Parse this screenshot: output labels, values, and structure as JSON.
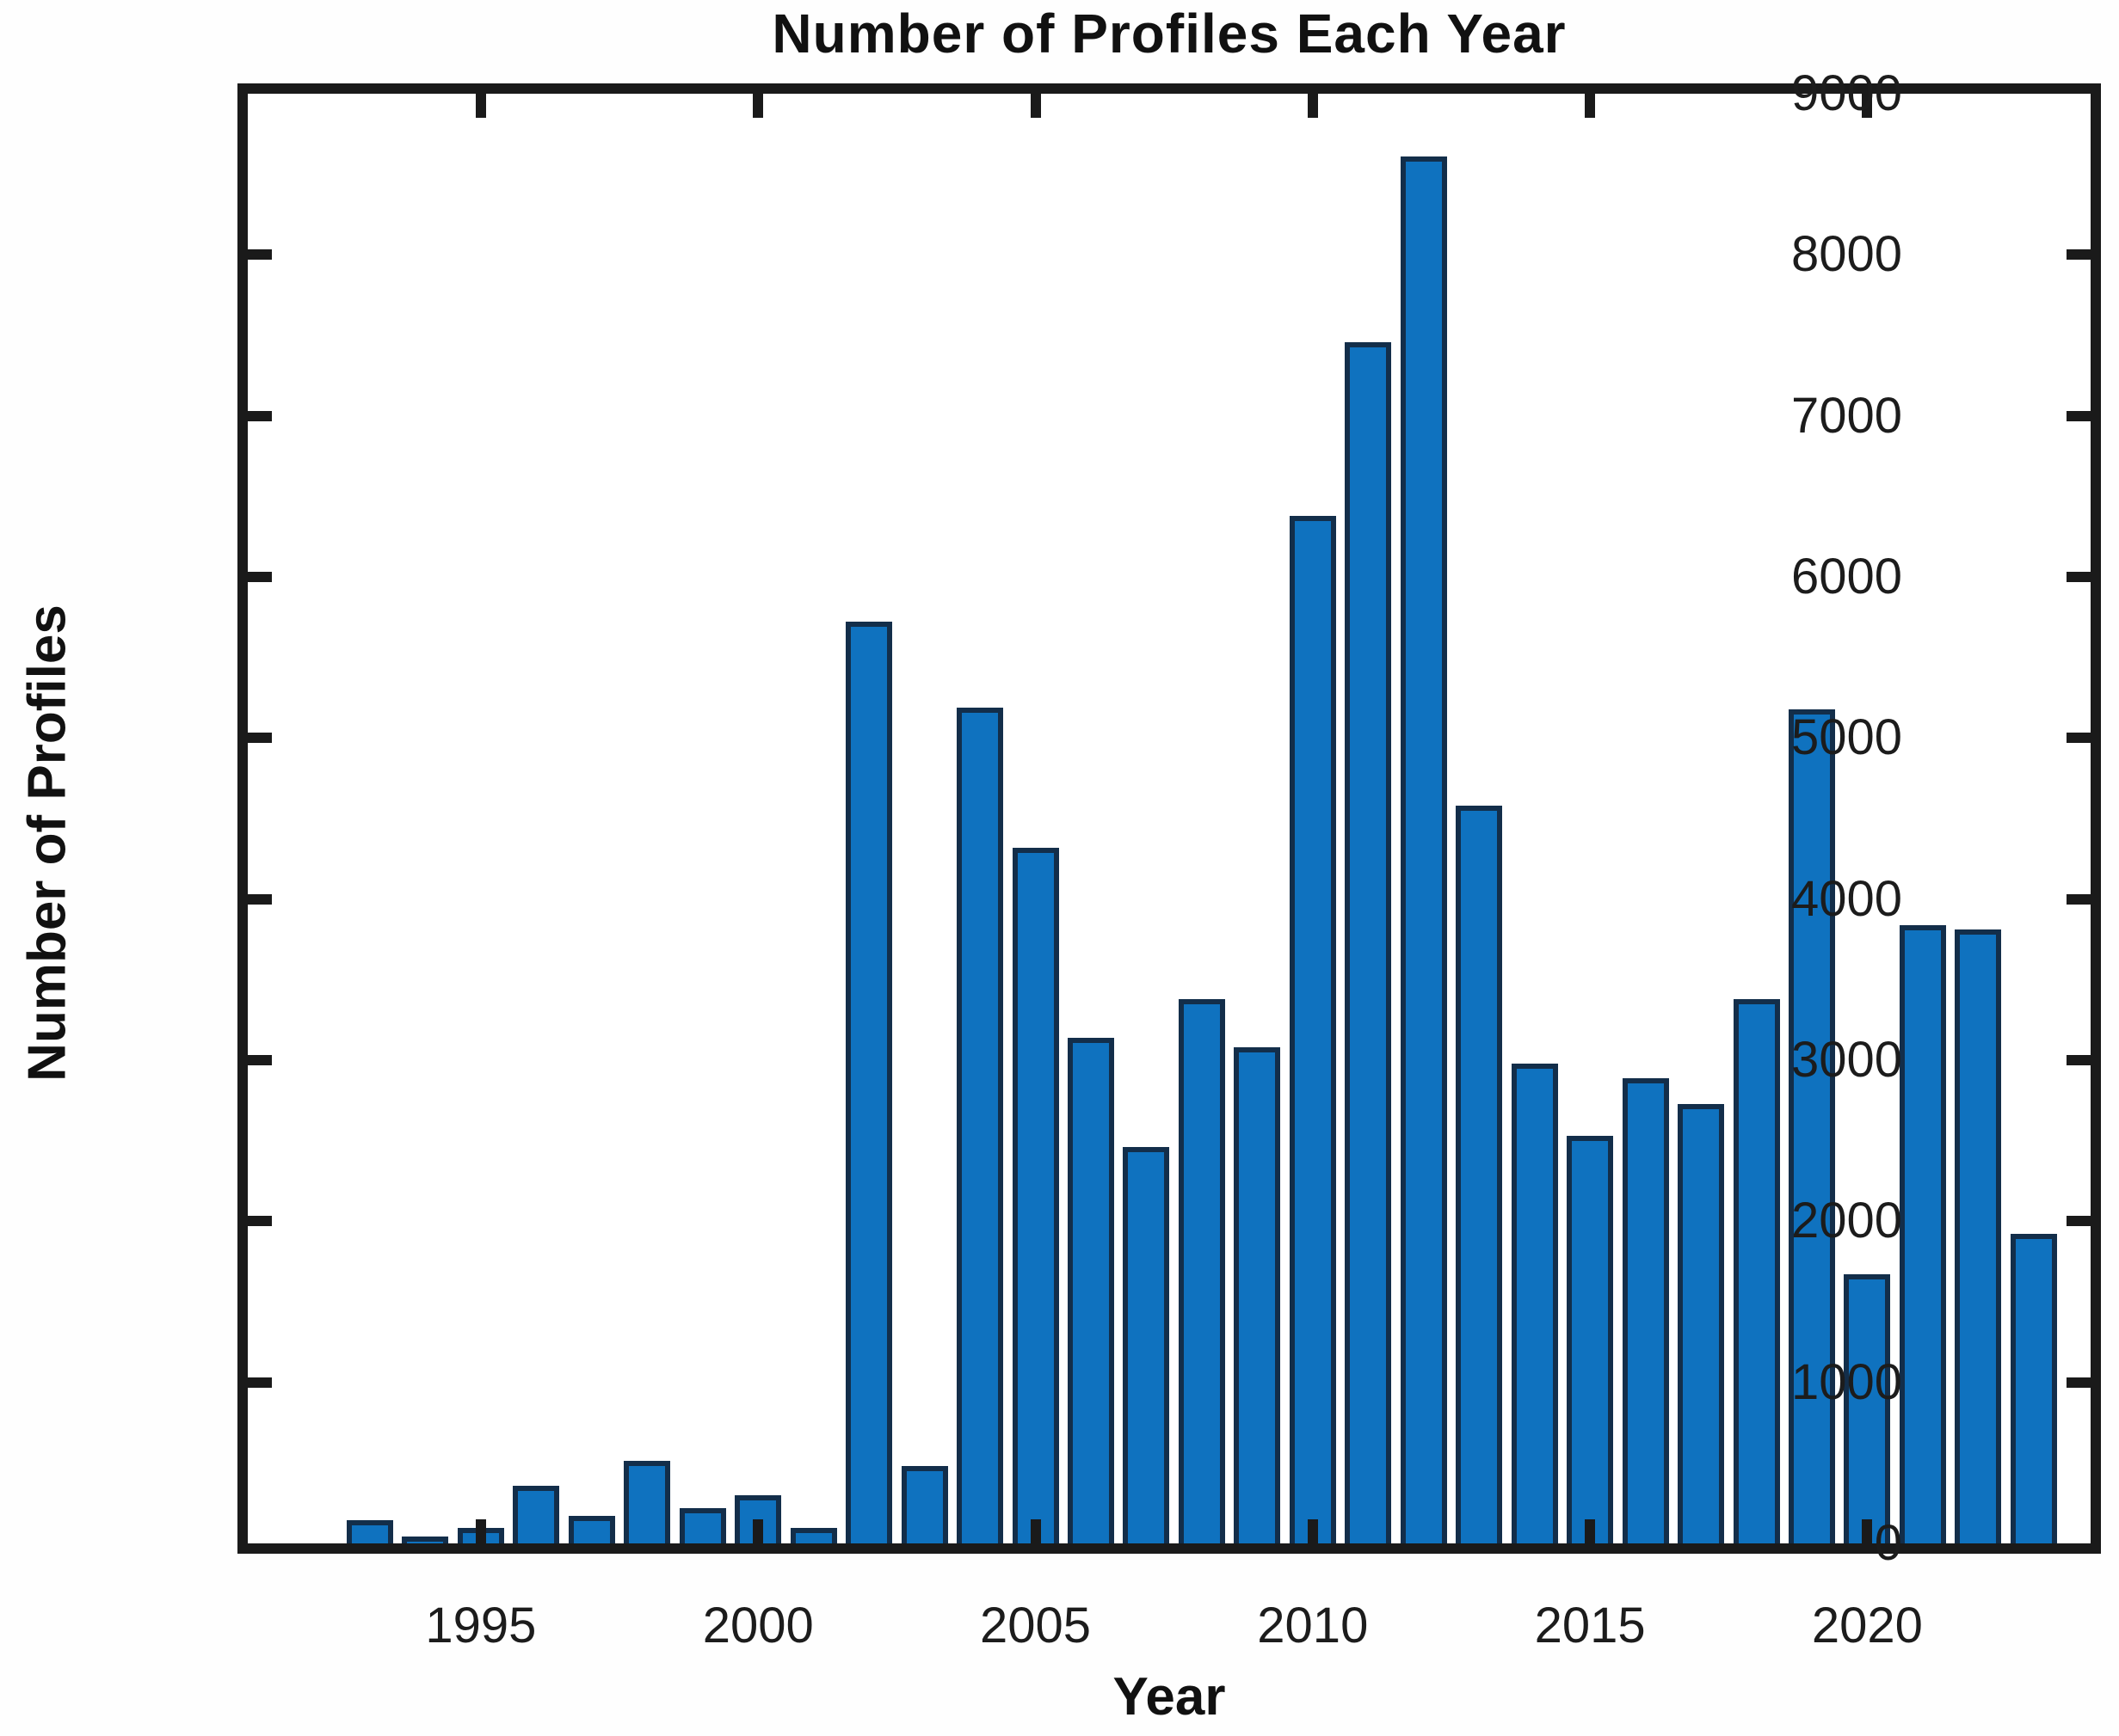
{
  "title": "Number of Profiles Each Year",
  "x_axis_label": "Year",
  "y_axis_label": "Number of Profiles",
  "colors": {
    "bar_fill": "#0f72bf",
    "bar_edge": "#132e4a",
    "axis": "#1a1a1a",
    "background": "#ffffff",
    "text": "#1c1c1c"
  },
  "chart_data": {
    "type": "bar",
    "title": "Number of Profiles Each Year",
    "xlabel": "Year",
    "ylabel": "Number of Profiles",
    "categories": [
      1993,
      1994,
      1995,
      1996,
      1997,
      1998,
      1999,
      2000,
      2001,
      2002,
      2003,
      2004,
      2005,
      2006,
      2007,
      2008,
      2009,
      2010,
      2011,
      2012,
      2013,
      2014,
      2015,
      2016,
      2017,
      2018,
      2019,
      2020,
      2021,
      2022,
      2023
    ],
    "values": [
      145,
      45,
      95,
      360,
      170,
      510,
      220,
      300,
      95,
      5720,
      480,
      5190,
      4320,
      3140,
      2460,
      3380,
      3080,
      6380,
      7460,
      8610,
      4580,
      2980,
      2530,
      2890,
      2730,
      3380,
      5180,
      1670,
      3840,
      3810,
      1920
    ],
    "ylim": [
      0,
      9000
    ],
    "yticks": [
      0,
      1000,
      2000,
      3000,
      4000,
      5000,
      6000,
      7000,
      8000,
      9000
    ],
    "xticks": [
      1995,
      2000,
      2005,
      2010,
      2015,
      2020
    ],
    "grid": false,
    "legend": "none",
    "tick_direction": "in",
    "box": true
  }
}
